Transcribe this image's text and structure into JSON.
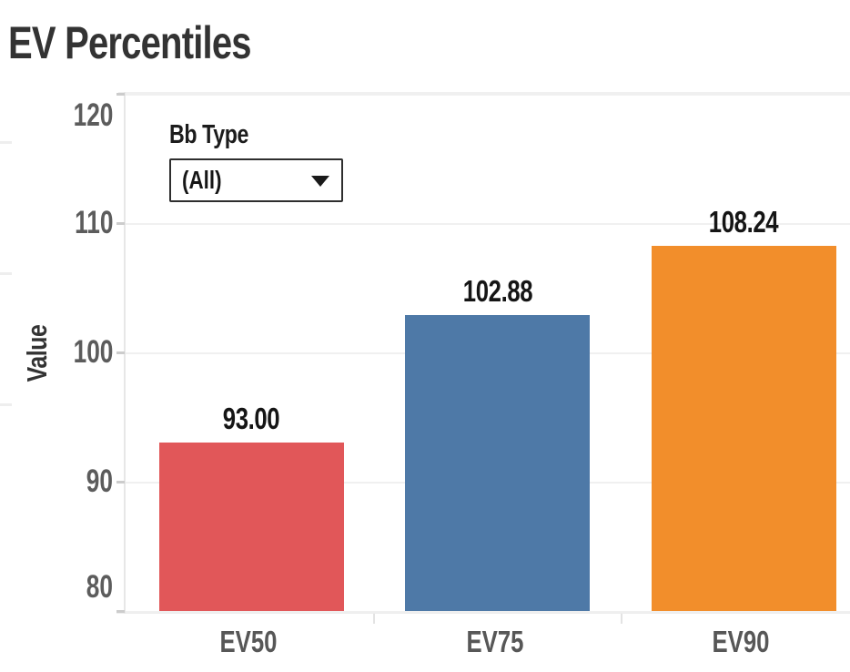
{
  "page": {
    "title": "EV Percentiles"
  },
  "filter": {
    "label": "Bb Type",
    "value": "(All)",
    "icon": "down-triangle"
  },
  "chart_data": {
    "type": "bar",
    "title": "EV Percentiles",
    "categories": [
      "EV50",
      "EV75",
      "EV90"
    ],
    "values": [
      93.0,
      102.88,
      108.24
    ],
    "value_labels": [
      "93.00",
      "102.88",
      "108.24"
    ],
    "bar_colors": [
      "#e15759",
      "#4e79a7",
      "#f28e2b"
    ],
    "xlabel": "",
    "ylabel": "Value",
    "ylim": [
      80,
      120
    ],
    "yticks": [
      80,
      90,
      100,
      110,
      120
    ],
    "grid": "horizontal",
    "legend": "none",
    "background": "#ffffff"
  }
}
